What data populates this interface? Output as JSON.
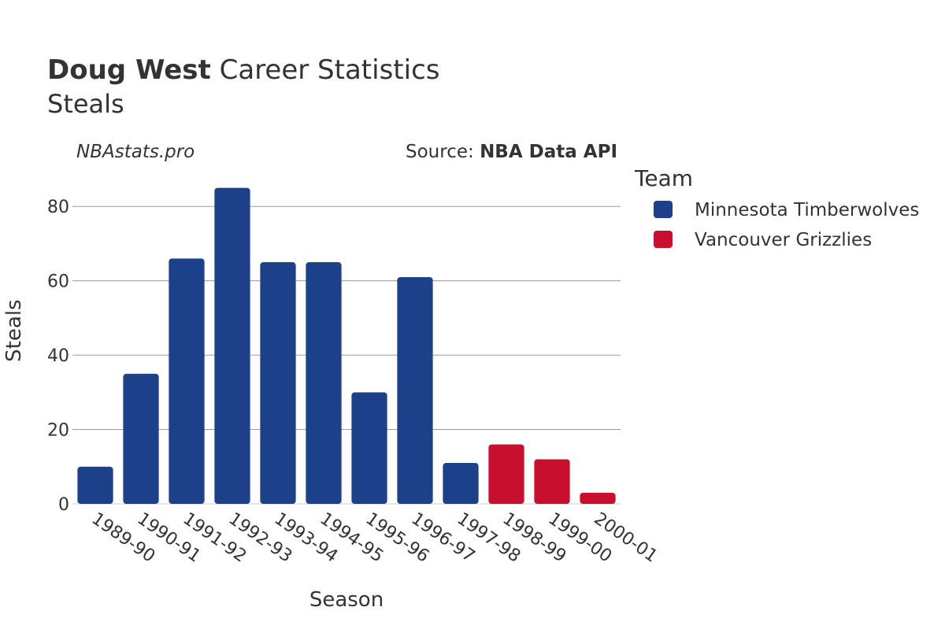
{
  "header": {
    "title_bold": "Doug West",
    "title_rest": " Career Statistics",
    "subtitle": "Steals"
  },
  "credits": {
    "site": "NBAstats.pro",
    "source_prefix": "Source: ",
    "source_bold": "NBA Data API"
  },
  "legend": {
    "title": "Team",
    "placement": "right",
    "items": [
      {
        "label": "Minnesota Timberwolves",
        "color": "#1c418a"
      },
      {
        "label": "Vancouver Grizzlies",
        "color": "#c8102e"
      }
    ]
  },
  "chart_data": {
    "type": "bar",
    "title": "Doug West Career Statistics",
    "subtitle": "Steals",
    "xlabel": "Season",
    "ylabel": "Steals",
    "ylim": [
      0,
      90
    ],
    "yticks": [
      0,
      20,
      40,
      60,
      80
    ],
    "grid": true,
    "categories": [
      "1989-90",
      "1990-91",
      "1991-92",
      "1992-93",
      "1993-94",
      "1994-95",
      "1995-96",
      "1996-97",
      "1997-98",
      "1998-99",
      "1999-00",
      "2000-01"
    ],
    "values": [
      10,
      35,
      66,
      85,
      65,
      65,
      30,
      61,
      11,
      16,
      12,
      3
    ],
    "teams": [
      "Minnesota Timberwolves",
      "Minnesota Timberwolves",
      "Minnesota Timberwolves",
      "Minnesota Timberwolves",
      "Minnesota Timberwolves",
      "Minnesota Timberwolves",
      "Minnesota Timberwolves",
      "Minnesota Timberwolves",
      "Minnesota Timberwolves",
      "Vancouver Grizzlies",
      "Vancouver Grizzlies",
      "Vancouver Grizzlies"
    ],
    "series_colors": {
      "Minnesota Timberwolves": "#1c418a",
      "Vancouver Grizzlies": "#c8102e"
    }
  }
}
